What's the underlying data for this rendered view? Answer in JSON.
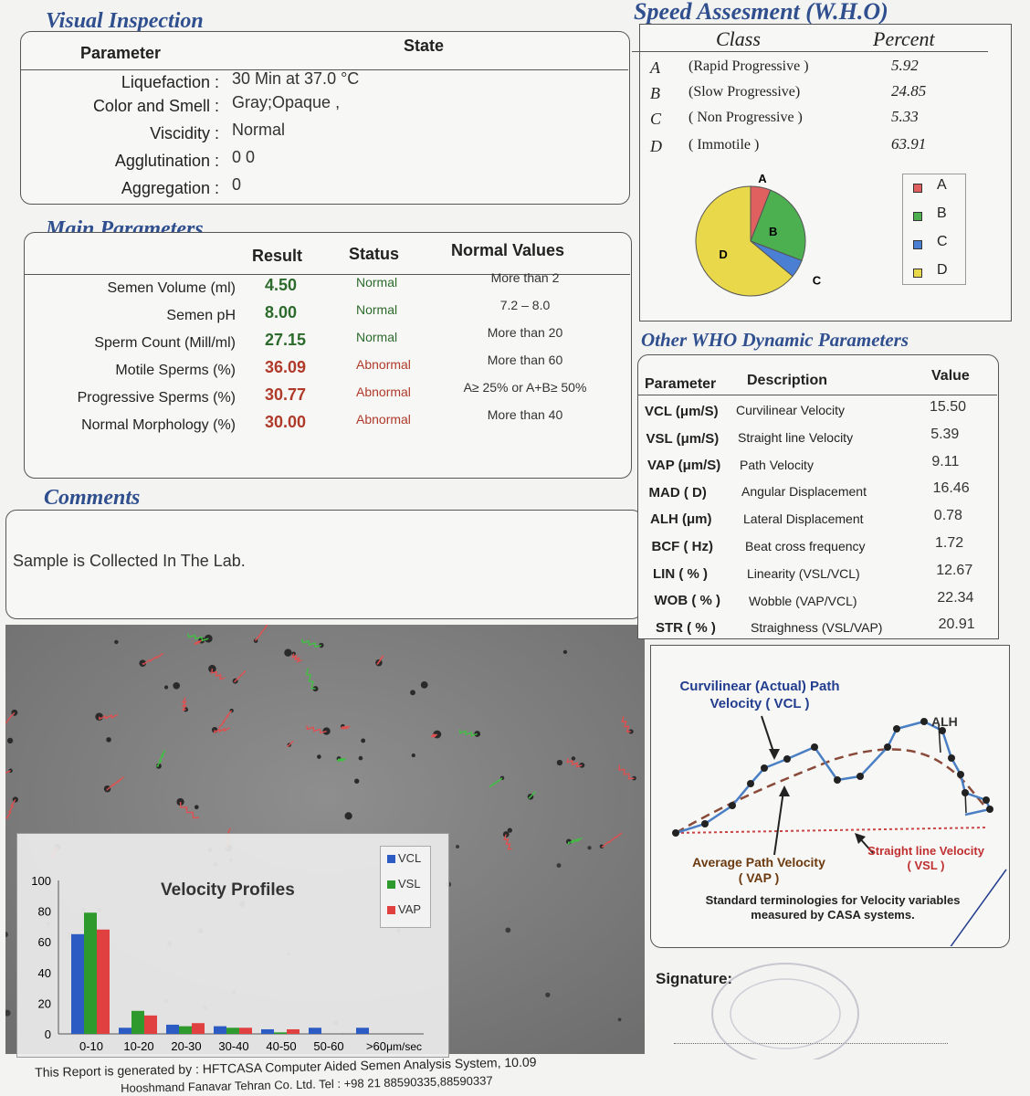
{
  "visual_inspection": {
    "title": "Visual Inspection",
    "col_parameter": "Parameter",
    "col_state": "State",
    "rows": [
      {
        "label": "Liquefaction :",
        "value": "30 Min at 37.0 °C"
      },
      {
        "label": "Color and Smell :",
        "value": "Gray;Opaque     ,"
      },
      {
        "label": "Viscidity :",
        "value": "Normal"
      },
      {
        "label": "Agglutination :",
        "value": "0   0"
      },
      {
        "label": "Aggregation :",
        "value": "0"
      }
    ]
  },
  "main_parameters": {
    "title": "Main Parameters",
    "headers": {
      "result": "Result",
      "status": "Status",
      "normal": "Normal Values"
    },
    "rows": [
      {
        "label": "Semen Volume (ml)",
        "result": "4.50",
        "status": "Normal",
        "normal": "More than  2",
        "abnormal": false
      },
      {
        "label": "Semen pH",
        "result": "8.00",
        "status": "Normal",
        "normal": "7.2 – 8.0",
        "abnormal": false
      },
      {
        "label": "Sperm Count (Mill/ml)",
        "result": "27.15",
        "status": "Normal",
        "normal": "More than  20",
        "abnormal": false
      },
      {
        "label": "Motile Sperms (%)",
        "result": "36.09",
        "status": "Abnormal",
        "normal": "More than 60",
        "abnormal": true
      },
      {
        "label": "Progressive Sperms (%)",
        "result": "30.77",
        "status": "Abnormal",
        "normal": "A≥ 25% or A+B≥ 50%",
        "abnormal": true
      },
      {
        "label": "Normal Morphology (%)",
        "result": "30.00",
        "status": "Abnormal",
        "normal": "More than  40",
        "abnormal": true
      }
    ]
  },
  "comments": {
    "title": "Comments",
    "text": "Sample is Collected In The Lab."
  },
  "speed": {
    "title": "Speed Assesment (W.H.O)",
    "col_class": "Class",
    "col_percent": "Percent",
    "rows": [
      {
        "letter": "A",
        "name": "(Rapid Progressive )",
        "percent": "5.92"
      },
      {
        "letter": "B",
        "name": "(Slow Progressive)",
        "percent": "24.85"
      },
      {
        "letter": "C",
        "name": "( Non Progressive )",
        "percent": "5.33"
      },
      {
        "letter": "D",
        "name": "( Immotile )",
        "percent": "63.91"
      }
    ],
    "pie": {
      "labels": [
        "A",
        "B",
        "C",
        "D"
      ],
      "values": [
        5.92,
        24.85,
        5.33,
        63.91
      ],
      "colors": [
        "#e06060",
        "#4caf50",
        "#4a7fd4",
        "#e8d84a"
      ]
    },
    "legend": [
      "A",
      "B",
      "C",
      "D"
    ]
  },
  "other_who": {
    "title": "Other WHO Dynamic Parameters",
    "headers": {
      "parameter": "Parameter",
      "description": "Description",
      "value": "Value"
    },
    "rows": [
      {
        "param": "VCL (μm/S)",
        "desc": "Curvilinear Velocity",
        "value": "15.50"
      },
      {
        "param": "VSL (μm/S)",
        "desc": "Straight line Velocity",
        "value": "5.39"
      },
      {
        "param": "VAP (μm/S)",
        "desc": "Path Velocity",
        "value": "9.11"
      },
      {
        "param": "MAD ( D)",
        "desc": "Angular Displacement",
        "value": "16.46"
      },
      {
        "param": "ALH (μm)",
        "desc": "Lateral Displacement",
        "value": "0.78"
      },
      {
        "param": "BCF ( Hz)",
        "desc": "Beat cross frequency",
        "value": "1.72"
      },
      {
        "param": "LIN   ( % )",
        "desc": "Linearity (VSL/VCL)",
        "value": "12.67"
      },
      {
        "param": "WOB ( % )",
        "desc": "Wobble  (VAP/VCL)",
        "value": "22.34"
      },
      {
        "param": "STR  ( % )",
        "desc": "Straighness (VSL/VAP)",
        "value": "20.91"
      }
    ]
  },
  "casa_diagram": {
    "vcl_label_1": "Curvilinear (Actual) Path",
    "vcl_label_2": "Velocity ( VCL )",
    "alh_label": "ALH",
    "vap_label_1": "Average Path Velocity",
    "vap_label_2": "( VAP )",
    "vsl_label_1": "Straight line Velocity",
    "vsl_label_2": "( VSL )",
    "caption_1": "Standard terminologies for Velocity variables",
    "caption_2": "measured by CASA systems."
  },
  "signature_label": "Signature:",
  "chart_data": {
    "type": "bar",
    "title": "Velocity Profiles",
    "categories": [
      "0-10",
      "10-20",
      "20-30",
      "30-40",
      "40-50",
      "50-60",
      ">60"
    ],
    "unit_label": "μm/sec",
    "series": [
      {
        "name": "VCL",
        "color": "#2d5bc4",
        "values": [
          65,
          4,
          6,
          5,
          3,
          4,
          4
        ]
      },
      {
        "name": "VSL",
        "color": "#2e9a2e",
        "values": [
          79,
          15,
          5,
          4,
          1,
          0,
          0
        ]
      },
      {
        "name": "VAP",
        "color": "#e04040",
        "values": [
          68,
          12,
          7,
          4,
          3,
          0,
          0
        ]
      }
    ],
    "yticks": [
      "0",
      "20",
      "40",
      "60",
      "80",
      "100"
    ],
    "ylim": [
      0,
      100
    ]
  },
  "footer": {
    "line1": "This Report is generated by : HFTCASA Computer Aided Semen Analysis System,   10.09",
    "line2": "Hooshmand Fanavar Tehran Co. Ltd.     Tel : +98 21 88590335,88590337"
  }
}
